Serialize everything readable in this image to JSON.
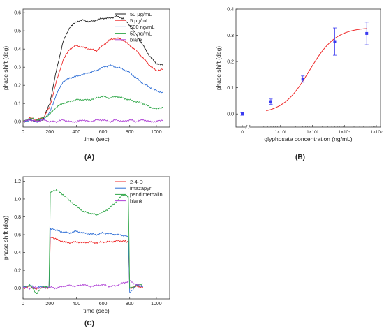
{
  "colors": {
    "black": "#222222",
    "red": "#ee2a2a",
    "blue": "#2f6fd6",
    "green": "#31a84a",
    "purple": "#b043d6",
    "fit_red": "#ee2a2a",
    "point_blue": "#3a3af0"
  },
  "chart_data": [
    {
      "id": "A",
      "type": "line",
      "panel_label": "(A)",
      "xlabel": "time (sec)",
      "ylabel": "phase shift (deg)",
      "xlim": [
        0,
        1100
      ],
      "ylim": [
        -0.03,
        0.62
      ],
      "xticks": [
        0,
        200,
        400,
        600,
        800,
        1000
      ],
      "yticks": [
        0.0,
        0.1,
        0.2,
        0.3,
        0.4,
        0.5,
        0.6
      ],
      "ytick_labels": [
        "0.0",
        "0.1",
        "0.2",
        "0.3",
        "0.4",
        "0.5",
        "0.6"
      ],
      "legend_position": "top-right",
      "grid": false,
      "series": [
        {
          "name": "50 μg/mL",
          "color": "black",
          "x": [
            0,
            50,
            100,
            150,
            200,
            250,
            300,
            350,
            400,
            450,
            500,
            550,
            600,
            650,
            700,
            750,
            800,
            850,
            900,
            950,
            1000,
            1050
          ],
          "y": [
            0.0,
            0.01,
            0.0,
            0.01,
            0.1,
            0.28,
            0.44,
            0.52,
            0.55,
            0.56,
            0.55,
            0.56,
            0.57,
            0.57,
            0.58,
            0.57,
            0.53,
            0.48,
            0.42,
            0.36,
            0.32,
            0.31
          ]
        },
        {
          "name": "5 μg/mL",
          "color": "red",
          "x": [
            0,
            50,
            100,
            150,
            200,
            250,
            300,
            350,
            400,
            450,
            500,
            550,
            600,
            650,
            700,
            750,
            800,
            850,
            900,
            950,
            1000,
            1050
          ],
          "y": [
            0.0,
            0.02,
            0.01,
            0.02,
            0.08,
            0.22,
            0.34,
            0.4,
            0.42,
            0.41,
            0.4,
            0.39,
            0.42,
            0.45,
            0.46,
            0.45,
            0.42,
            0.39,
            0.35,
            0.31,
            0.28,
            0.29
          ]
        },
        {
          "name": "500 ng/mL",
          "color": "blue",
          "x": [
            0,
            50,
            100,
            150,
            200,
            250,
            300,
            350,
            400,
            450,
            500,
            550,
            600,
            650,
            700,
            750,
            800,
            850,
            900,
            950,
            1000,
            1050
          ],
          "y": [
            0.0,
            0.01,
            0.0,
            0.01,
            0.05,
            0.15,
            0.22,
            0.24,
            0.25,
            0.26,
            0.27,
            0.28,
            0.3,
            0.31,
            0.3,
            0.29,
            0.27,
            0.24,
            0.21,
            0.19,
            0.17,
            0.16
          ]
        },
        {
          "name": "50 ng/mL",
          "color": "green",
          "x": [
            0,
            50,
            100,
            150,
            200,
            250,
            300,
            350,
            400,
            450,
            500,
            550,
            600,
            650,
            700,
            750,
            800,
            850,
            900,
            950,
            1000,
            1050
          ],
          "y": [
            0.0,
            0.02,
            0.01,
            0.02,
            0.04,
            0.08,
            0.1,
            0.11,
            0.12,
            0.12,
            0.12,
            0.13,
            0.14,
            0.13,
            0.14,
            0.13,
            0.12,
            0.11,
            0.1,
            0.08,
            0.07,
            0.08
          ]
        },
        {
          "name": "blank",
          "color": "purple",
          "x": [
            0,
            50,
            100,
            150,
            200,
            250,
            300,
            350,
            400,
            450,
            500,
            550,
            600,
            650,
            700,
            750,
            800,
            850,
            900,
            950,
            1000,
            1050
          ],
          "y": [
            0.0,
            0.01,
            0.0,
            0.01,
            0.0,
            0.0,
            0.01,
            0.0,
            0.0,
            0.01,
            0.0,
            0.01,
            0.01,
            0.0,
            0.01,
            0.0,
            0.01,
            0.0,
            0.01,
            0.0,
            0.0,
            0.01
          ]
        }
      ]
    },
    {
      "id": "B",
      "type": "scatter",
      "panel_label": "(B)",
      "xlabel": "glyphosate concentration (ng/mL)",
      "ylabel": "phase shift (deg)",
      "x_scale": "log with axis break at 0",
      "ylim": [
        -0.05,
        0.4
      ],
      "yticks": [
        0.0,
        0.1,
        0.2,
        0.3,
        0.4
      ],
      "ytick_labels": [
        "0.0",
        "0.1",
        "0.2",
        "0.3",
        "0.4"
      ],
      "xtick_labels": [
        "0",
        "1×10²",
        "1×10³",
        "1×10⁴",
        "1×10⁵"
      ],
      "xtick_values": [
        0,
        100,
        1000,
        10000,
        100000
      ],
      "grid": false,
      "points": [
        {
          "x": 0,
          "y": 0.0,
          "err": 0.005
        },
        {
          "x": 50,
          "y": 0.047,
          "err": 0.01
        },
        {
          "x": 500,
          "y": 0.133,
          "err": 0.012
        },
        {
          "x": 5000,
          "y": 0.276,
          "err": 0.052
        },
        {
          "x": 50000,
          "y": 0.307,
          "err": 0.043
        }
      ],
      "fit": {
        "type": "sigmoid",
        "color": "fit_red"
      }
    },
    {
      "id": "C",
      "type": "line",
      "panel_label": "(C)",
      "xlabel": "time (sec)",
      "ylabel": "phase shift (deg)",
      "xlim": [
        0,
        1100
      ],
      "ylim": [
        -0.12,
        1.25
      ],
      "xticks": [
        0,
        200,
        400,
        600,
        800,
        1000
      ],
      "yticks": [
        0.0,
        0.2,
        0.4,
        0.6,
        0.8,
        1.0,
        1.2
      ],
      "ytick_labels": [
        "0.0",
        "0.2",
        "0.4",
        "0.6",
        "0.8",
        "1.0",
        "1.2"
      ],
      "legend_position": "top-right",
      "grid": false,
      "series": [
        {
          "name": "2-4-D",
          "color": "red",
          "x": [
            0,
            50,
            100,
            150,
            195,
            205,
            250,
            300,
            350,
            400,
            450,
            500,
            550,
            600,
            650,
            700,
            750,
            790,
            800,
            850,
            900
          ],
          "y": [
            0.0,
            0.02,
            -0.01,
            0.01,
            0.0,
            0.57,
            0.55,
            0.52,
            0.51,
            0.52,
            0.51,
            0.52,
            0.51,
            0.52,
            0.52,
            0.53,
            0.53,
            0.52,
            0.0,
            0.02,
            0.01
          ]
        },
        {
          "name": "imazapyr",
          "color": "blue",
          "x": [
            0,
            50,
            100,
            150,
            195,
            205,
            250,
            300,
            350,
            400,
            450,
            500,
            550,
            600,
            650,
            700,
            750,
            790,
            800,
            850,
            900
          ],
          "y": [
            0.01,
            0.03,
            0.0,
            0.02,
            0.01,
            0.67,
            0.65,
            0.63,
            0.62,
            0.64,
            0.62,
            0.61,
            0.6,
            0.62,
            0.61,
            0.6,
            0.59,
            0.58,
            -0.05,
            0.03,
            0.02
          ]
        },
        {
          "name": "pendimethalin",
          "color": "green",
          "x": [
            0,
            50,
            100,
            150,
            195,
            205,
            250,
            300,
            350,
            400,
            450,
            500,
            550,
            600,
            650,
            700,
            750,
            790,
            800,
            850,
            900
          ],
          "y": [
            0.0,
            0.04,
            -0.06,
            0.02,
            0.01,
            1.08,
            1.1,
            1.05,
            0.98,
            0.92,
            0.86,
            0.84,
            0.82,
            0.85,
            0.9,
            0.97,
            1.05,
            1.03,
            0.0,
            0.03,
            0.05
          ]
        },
        {
          "name": "blank",
          "color": "purple",
          "x": [
            0,
            50,
            100,
            150,
            200,
            250,
            300,
            350,
            400,
            450,
            500,
            550,
            600,
            650,
            700,
            750,
            800,
            850,
            900
          ],
          "y": [
            0.01,
            0.0,
            0.01,
            0.0,
            0.01,
            0.0,
            0.02,
            0.03,
            0.02,
            0.04,
            0.02,
            0.03,
            0.04,
            0.02,
            0.03,
            0.06,
            0.08,
            0.04,
            0.02
          ]
        }
      ]
    }
  ]
}
